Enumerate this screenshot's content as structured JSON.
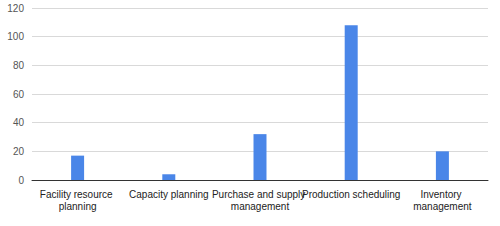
{
  "chart_data": {
    "type": "bar",
    "categories": [
      "Facility resource planning",
      "Capacity planning",
      "Purchase and supply management",
      "Production scheduling",
      "Inventory management"
    ],
    "values": [
      17,
      4,
      32,
      108,
      20
    ],
    "color": "#4a86e8",
    "ylim": [
      0,
      120
    ],
    "yticks": [
      0,
      20,
      40,
      60,
      80,
      100,
      120
    ],
    "grid": true
  }
}
